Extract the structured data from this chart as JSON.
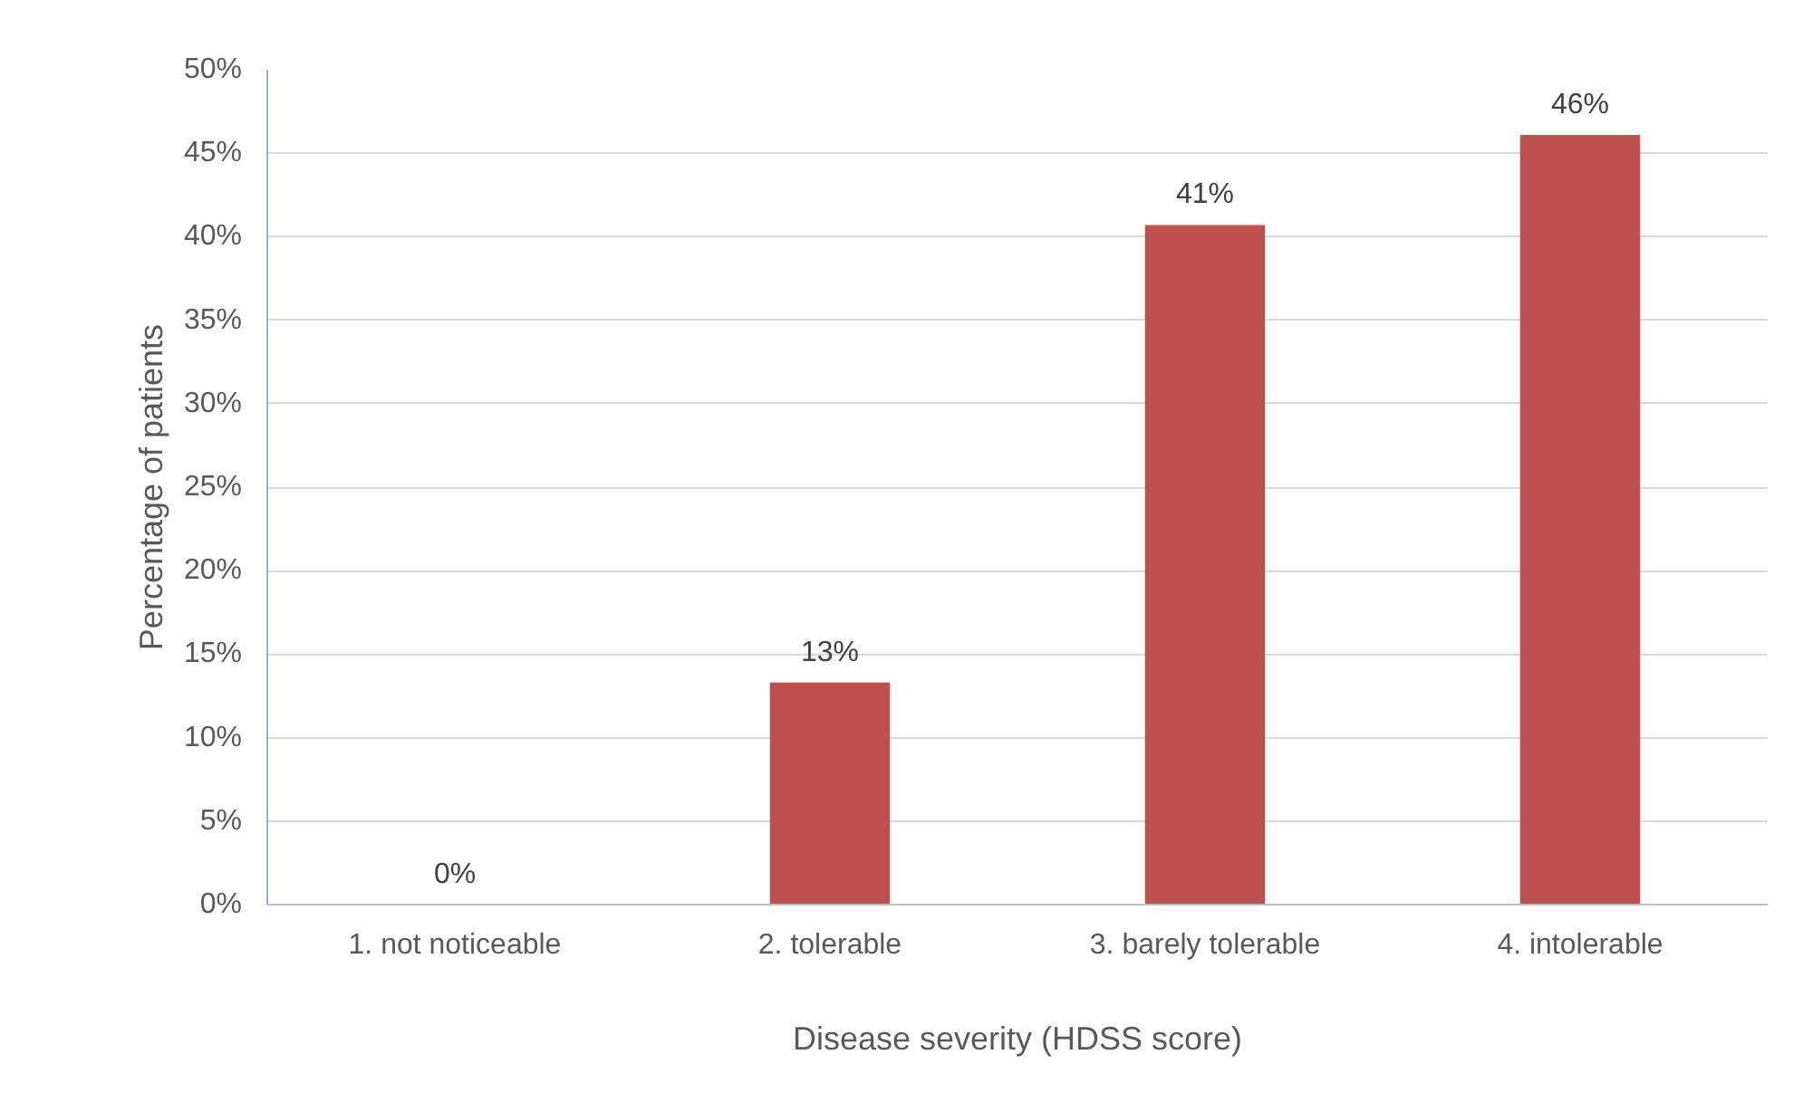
{
  "chart_data": {
    "type": "bar",
    "xlabel": "Disease severity (HDSS score)",
    "ylabel": "Percentage of patients",
    "categories": [
      "1. not noticeable",
      "2. tolerable",
      "3. barely tolerable",
      "4. intolerable"
    ],
    "values": [
      0,
      13.3,
      40.7,
      46.1
    ],
    "value_labels": [
      "0%",
      "13%",
      "41%",
      "46%"
    ],
    "color": "#c0504d",
    "ylim": [
      0,
      50
    ],
    "yticks": [
      {
        "value": 0,
        "label": "0%"
      },
      {
        "value": 5,
        "label": "5%"
      },
      {
        "value": 10,
        "label": "10%"
      },
      {
        "value": 15,
        "label": "15%"
      },
      {
        "value": 20,
        "label": "20%"
      },
      {
        "value": 25,
        "label": "25%"
      },
      {
        "value": 30,
        "label": "30%"
      },
      {
        "value": 35,
        "label": "35%"
      },
      {
        "value": 40,
        "label": "40%"
      },
      {
        "value": 45,
        "label": "45%"
      },
      {
        "value": 50,
        "label": "50%"
      }
    ],
    "grid": "y"
  }
}
